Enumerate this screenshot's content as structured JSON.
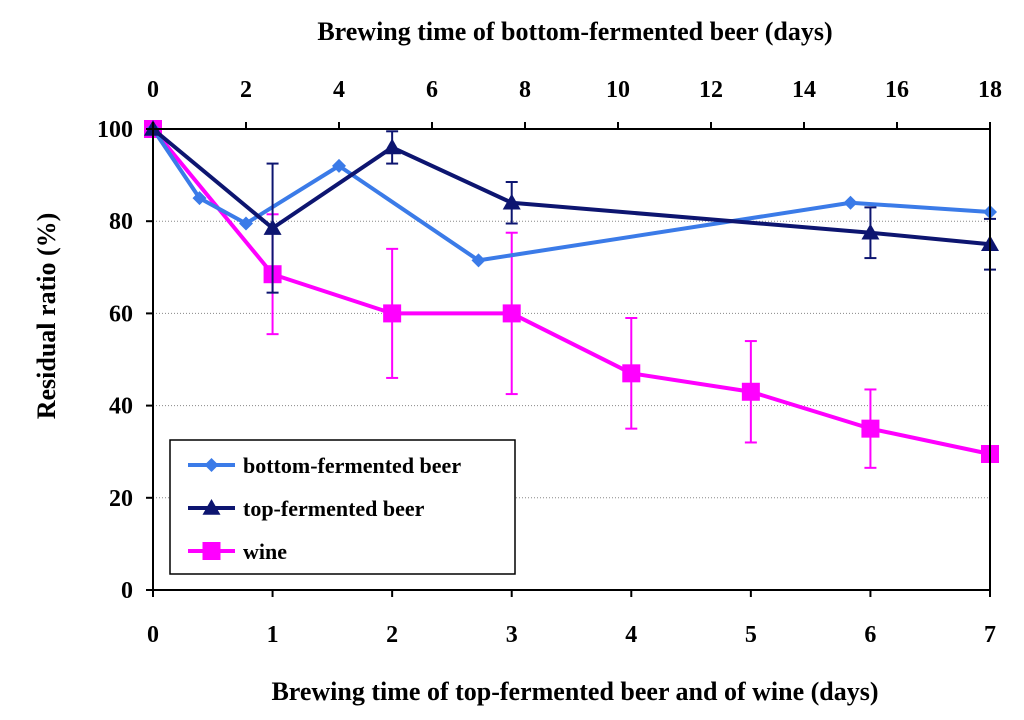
{
  "chart_data": {
    "type": "line",
    "title": "",
    "ylabel": "Residual ratio (%)",
    "ylim": [
      0,
      100
    ],
    "yticks": [
      0,
      20,
      40,
      60,
      80,
      100
    ],
    "grid": "horizontal dotted",
    "x_bottom": {
      "label": "Brewing time of top-fermented beer and of wine (days)",
      "range": [
        0,
        7
      ],
      "ticks": [
        0,
        1,
        2,
        3,
        4,
        5,
        6,
        7
      ]
    },
    "x_top": {
      "label": "Brewing time of bottom-fermented beer (days)",
      "range": [
        0,
        18
      ],
      "ticks": [
        0,
        2,
        4,
        6,
        8,
        10,
        12,
        14,
        16,
        18
      ]
    },
    "legend_position": "bottom-left",
    "series": [
      {
        "name": "bottom-fermented beer",
        "axis": "top",
        "color": "#3B7BE8",
        "marker": "diamond",
        "x": [
          0,
          1,
          2,
          4,
          7,
          15,
          18
        ],
        "y": [
          100,
          85,
          79.5,
          92,
          71.5,
          84,
          82
        ],
        "err": [
          0,
          0,
          0,
          0,
          0,
          0,
          0
        ]
      },
      {
        "name": "top-fermented beer",
        "axis": "bottom",
        "color": "#0D1570",
        "marker": "triangle",
        "x": [
          0,
          1,
          2,
          3,
          6,
          7
        ],
        "y": [
          100,
          78.5,
          96,
          84,
          77.5,
          75
        ],
        "err": [
          0,
          14,
          3.5,
          4.5,
          5.5,
          5.5
        ]
      },
      {
        "name": "wine",
        "axis": "bottom",
        "color": "#FF00FF",
        "marker": "square",
        "x": [
          0,
          1,
          2,
          3,
          4,
          5,
          6,
          7
        ],
        "y": [
          100,
          68.5,
          60,
          60,
          47,
          43,
          35,
          29.5
        ],
        "err": [
          0,
          13,
          14,
          17.5,
          12,
          11,
          8.5,
          1.5
        ]
      }
    ]
  }
}
